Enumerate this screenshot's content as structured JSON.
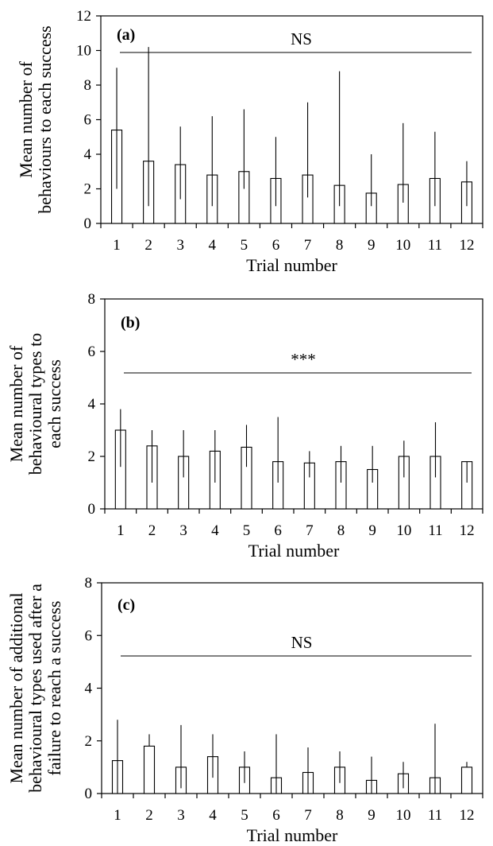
{
  "chart_data": [
    {
      "type": "bar",
      "panel_label": "(a)",
      "significance": "NS",
      "ylabel_lines": [
        "Mean number of",
        "behaviours to each success"
      ],
      "xlabel": "Trial number",
      "ylim": [
        0,
        12
      ],
      "yticks": [
        0,
        2,
        4,
        6,
        8,
        10,
        12
      ],
      "categories": [
        "1",
        "2",
        "3",
        "4",
        "5",
        "6",
        "7",
        "8",
        "9",
        "10",
        "11",
        "12"
      ],
      "values": [
        5.4,
        3.6,
        3.4,
        2.8,
        3.0,
        2.6,
        2.8,
        2.2,
        1.75,
        2.25,
        2.6,
        2.4
      ],
      "error_low": [
        2.0,
        1.0,
        1.4,
        1.0,
        2.0,
        1.0,
        1.5,
        1.0,
        1.0,
        1.2,
        1.0,
        1.0
      ],
      "error_high": [
        9.0,
        10.2,
        5.6,
        6.2,
        6.6,
        5.0,
        7.0,
        8.8,
        4.0,
        5.8,
        5.3,
        3.6
      ],
      "grid": false,
      "legend": "none"
    },
    {
      "type": "bar",
      "panel_label": "(b)",
      "significance": "***",
      "ylabel_lines": [
        "Mean number of",
        "behavioural types to",
        "each success"
      ],
      "xlabel": "Trial number",
      "ylim": [
        0,
        8
      ],
      "yticks": [
        0,
        2,
        4,
        6,
        8
      ],
      "categories": [
        "1",
        "2",
        "3",
        "4",
        "5",
        "6",
        "7",
        "8",
        "9",
        "10",
        "11",
        "12"
      ],
      "values": [
        3.0,
        2.4,
        2.0,
        2.2,
        2.35,
        1.8,
        1.75,
        1.8,
        1.5,
        2.0,
        2.0,
        1.8
      ],
      "error_low": [
        1.6,
        1.0,
        1.2,
        1.0,
        1.6,
        1.0,
        1.2,
        1.0,
        1.0,
        1.2,
        1.2,
        1.0
      ],
      "error_high": [
        3.8,
        3.0,
        3.0,
        3.0,
        3.2,
        3.5,
        2.2,
        2.4,
        2.4,
        2.6,
        3.3,
        1.8
      ],
      "grid": false,
      "legend": "none"
    },
    {
      "type": "bar",
      "panel_label": "(c)",
      "significance": "NS",
      "ylabel_lines": [
        "Mean number of additional",
        "behavioural types used after a",
        "failure to reach a success"
      ],
      "xlabel": "Trial number",
      "ylim": [
        0,
        8
      ],
      "yticks": [
        0,
        2,
        4,
        6,
        8
      ],
      "categories": [
        "1",
        "2",
        "3",
        "4",
        "5",
        "6",
        "7",
        "8",
        "9",
        "10",
        "11",
        "12"
      ],
      "values": [
        1.25,
        1.8,
        1.0,
        1.4,
        1.0,
        0.6,
        0.8,
        1.0,
        0.5,
        0.75,
        0.6,
        1.0
      ],
      "error_low": [
        0.0,
        1.8,
        0.2,
        0.6,
        0.4,
        0.0,
        0.0,
        0.4,
        0.0,
        0.2,
        0.0,
        1.0
      ],
      "error_high": [
        2.8,
        2.25,
        2.6,
        2.25,
        1.6,
        2.25,
        1.75,
        1.6,
        1.4,
        1.2,
        2.65,
        1.2
      ],
      "grid": false,
      "legend": "none"
    }
  ]
}
